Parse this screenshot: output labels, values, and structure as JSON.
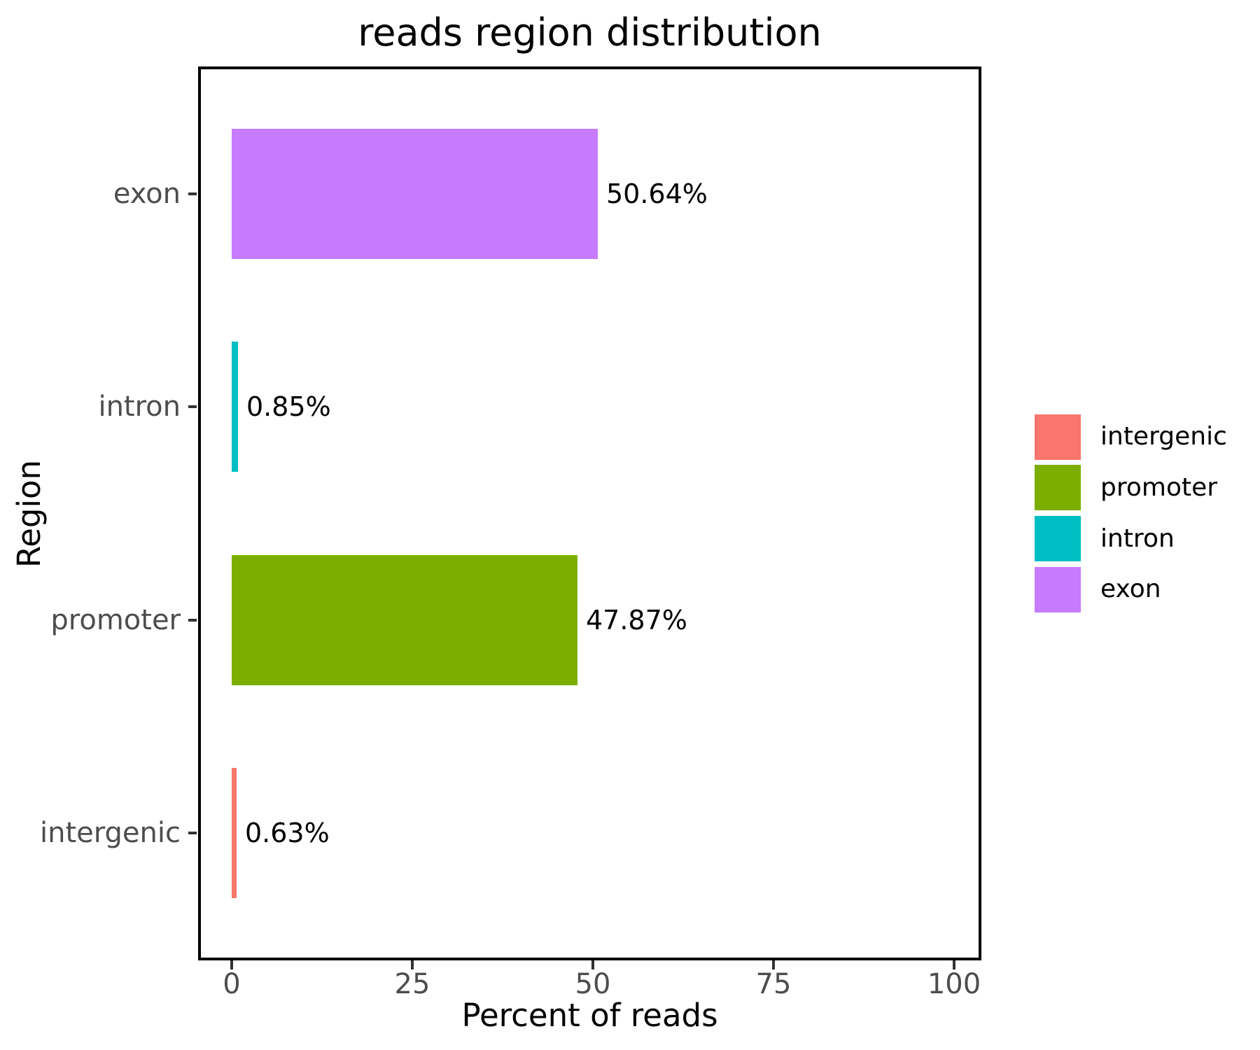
{
  "title": "reads region distribution",
  "axes": {
    "x_label": "Percent of reads",
    "y_label": "Region"
  },
  "chart_data": {
    "type": "bar",
    "orientation": "horizontal",
    "title": "reads region distribution",
    "xlabel": "Percent of reads",
    "ylabel": "Region",
    "xlim": [
      0,
      100
    ],
    "x_ticks": [
      0,
      25,
      50,
      75,
      100
    ],
    "x_tick_labels": [
      "0",
      "25",
      "50",
      "75",
      "100"
    ],
    "grid": false,
    "panel_background": "#ffffff",
    "panel_border_color": "#000000",
    "axis_text_color": "#4d4d4d",
    "categories_top_to_bottom": [
      "exon",
      "intron",
      "promoter",
      "intergenic"
    ],
    "bars": [
      {
        "category": "exon",
        "value": 50.64,
        "label": "50.64%",
        "color": "#C77CFF"
      },
      {
        "category": "intron",
        "value": 0.85,
        "label": "0.85%",
        "color": "#00BFC4"
      },
      {
        "category": "promoter",
        "value": 47.87,
        "label": "47.87%",
        "color": "#7CAE00"
      },
      {
        "category": "intergenic",
        "value": 0.63,
        "label": "0.63%",
        "color": "#F8766D"
      }
    ],
    "legend": {
      "position": "right",
      "items": [
        {
          "label": "intergenic",
          "color": "#F8766D"
        },
        {
          "label": "promoter",
          "color": "#7CAE00"
        },
        {
          "label": "intron",
          "color": "#00BFC4"
        },
        {
          "label": "exon",
          "color": "#C77CFF"
        }
      ]
    }
  }
}
